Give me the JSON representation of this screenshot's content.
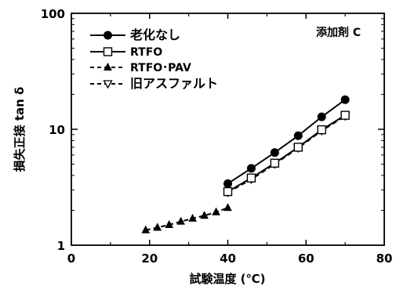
{
  "chart_data": {
    "type": "line",
    "annotation": "添加剤 C",
    "xlabel": "試験温度 (℃)",
    "ylabel": "損失正接 tan δ",
    "xlim": [
      0,
      80
    ],
    "ylim": [
      1,
      100
    ],
    "yscale": "log",
    "xticks": [
      "0",
      "20",
      "40",
      "60",
      "80"
    ],
    "yticks": [
      "1",
      "10",
      "100"
    ],
    "grid": false,
    "legend_position": "top-left",
    "series": [
      {
        "name": "老化なし",
        "marker": "filled-circle",
        "line": "solid",
        "x": [
          40,
          46,
          52,
          58,
          64,
          70
        ],
        "y": [
          3.4,
          4.6,
          6.3,
          8.8,
          12.8,
          18.0
        ]
      },
      {
        "name": "RTFO",
        "marker": "open-square",
        "line": "solid",
        "x": [
          40,
          46,
          52,
          58,
          64,
          70
        ],
        "y": [
          2.9,
          3.8,
          5.1,
          7.0,
          9.9,
          13.2
        ]
      },
      {
        "name": "RTFO･PAV",
        "marker": "filled-triangle",
        "line": "dashed",
        "x": [
          19,
          22,
          25,
          28,
          31,
          34,
          37,
          40
        ],
        "y": [
          1.35,
          1.42,
          1.5,
          1.6,
          1.7,
          1.8,
          1.93,
          2.1
        ]
      },
      {
        "name": "旧アスファルト",
        "marker": "open-triangle-down",
        "line": "dashed",
        "x": [
          40,
          46,
          52,
          58,
          64,
          70
        ],
        "y": [
          2.85,
          3.7,
          5.0,
          6.9,
          9.7,
          13.0
        ]
      }
    ]
  }
}
